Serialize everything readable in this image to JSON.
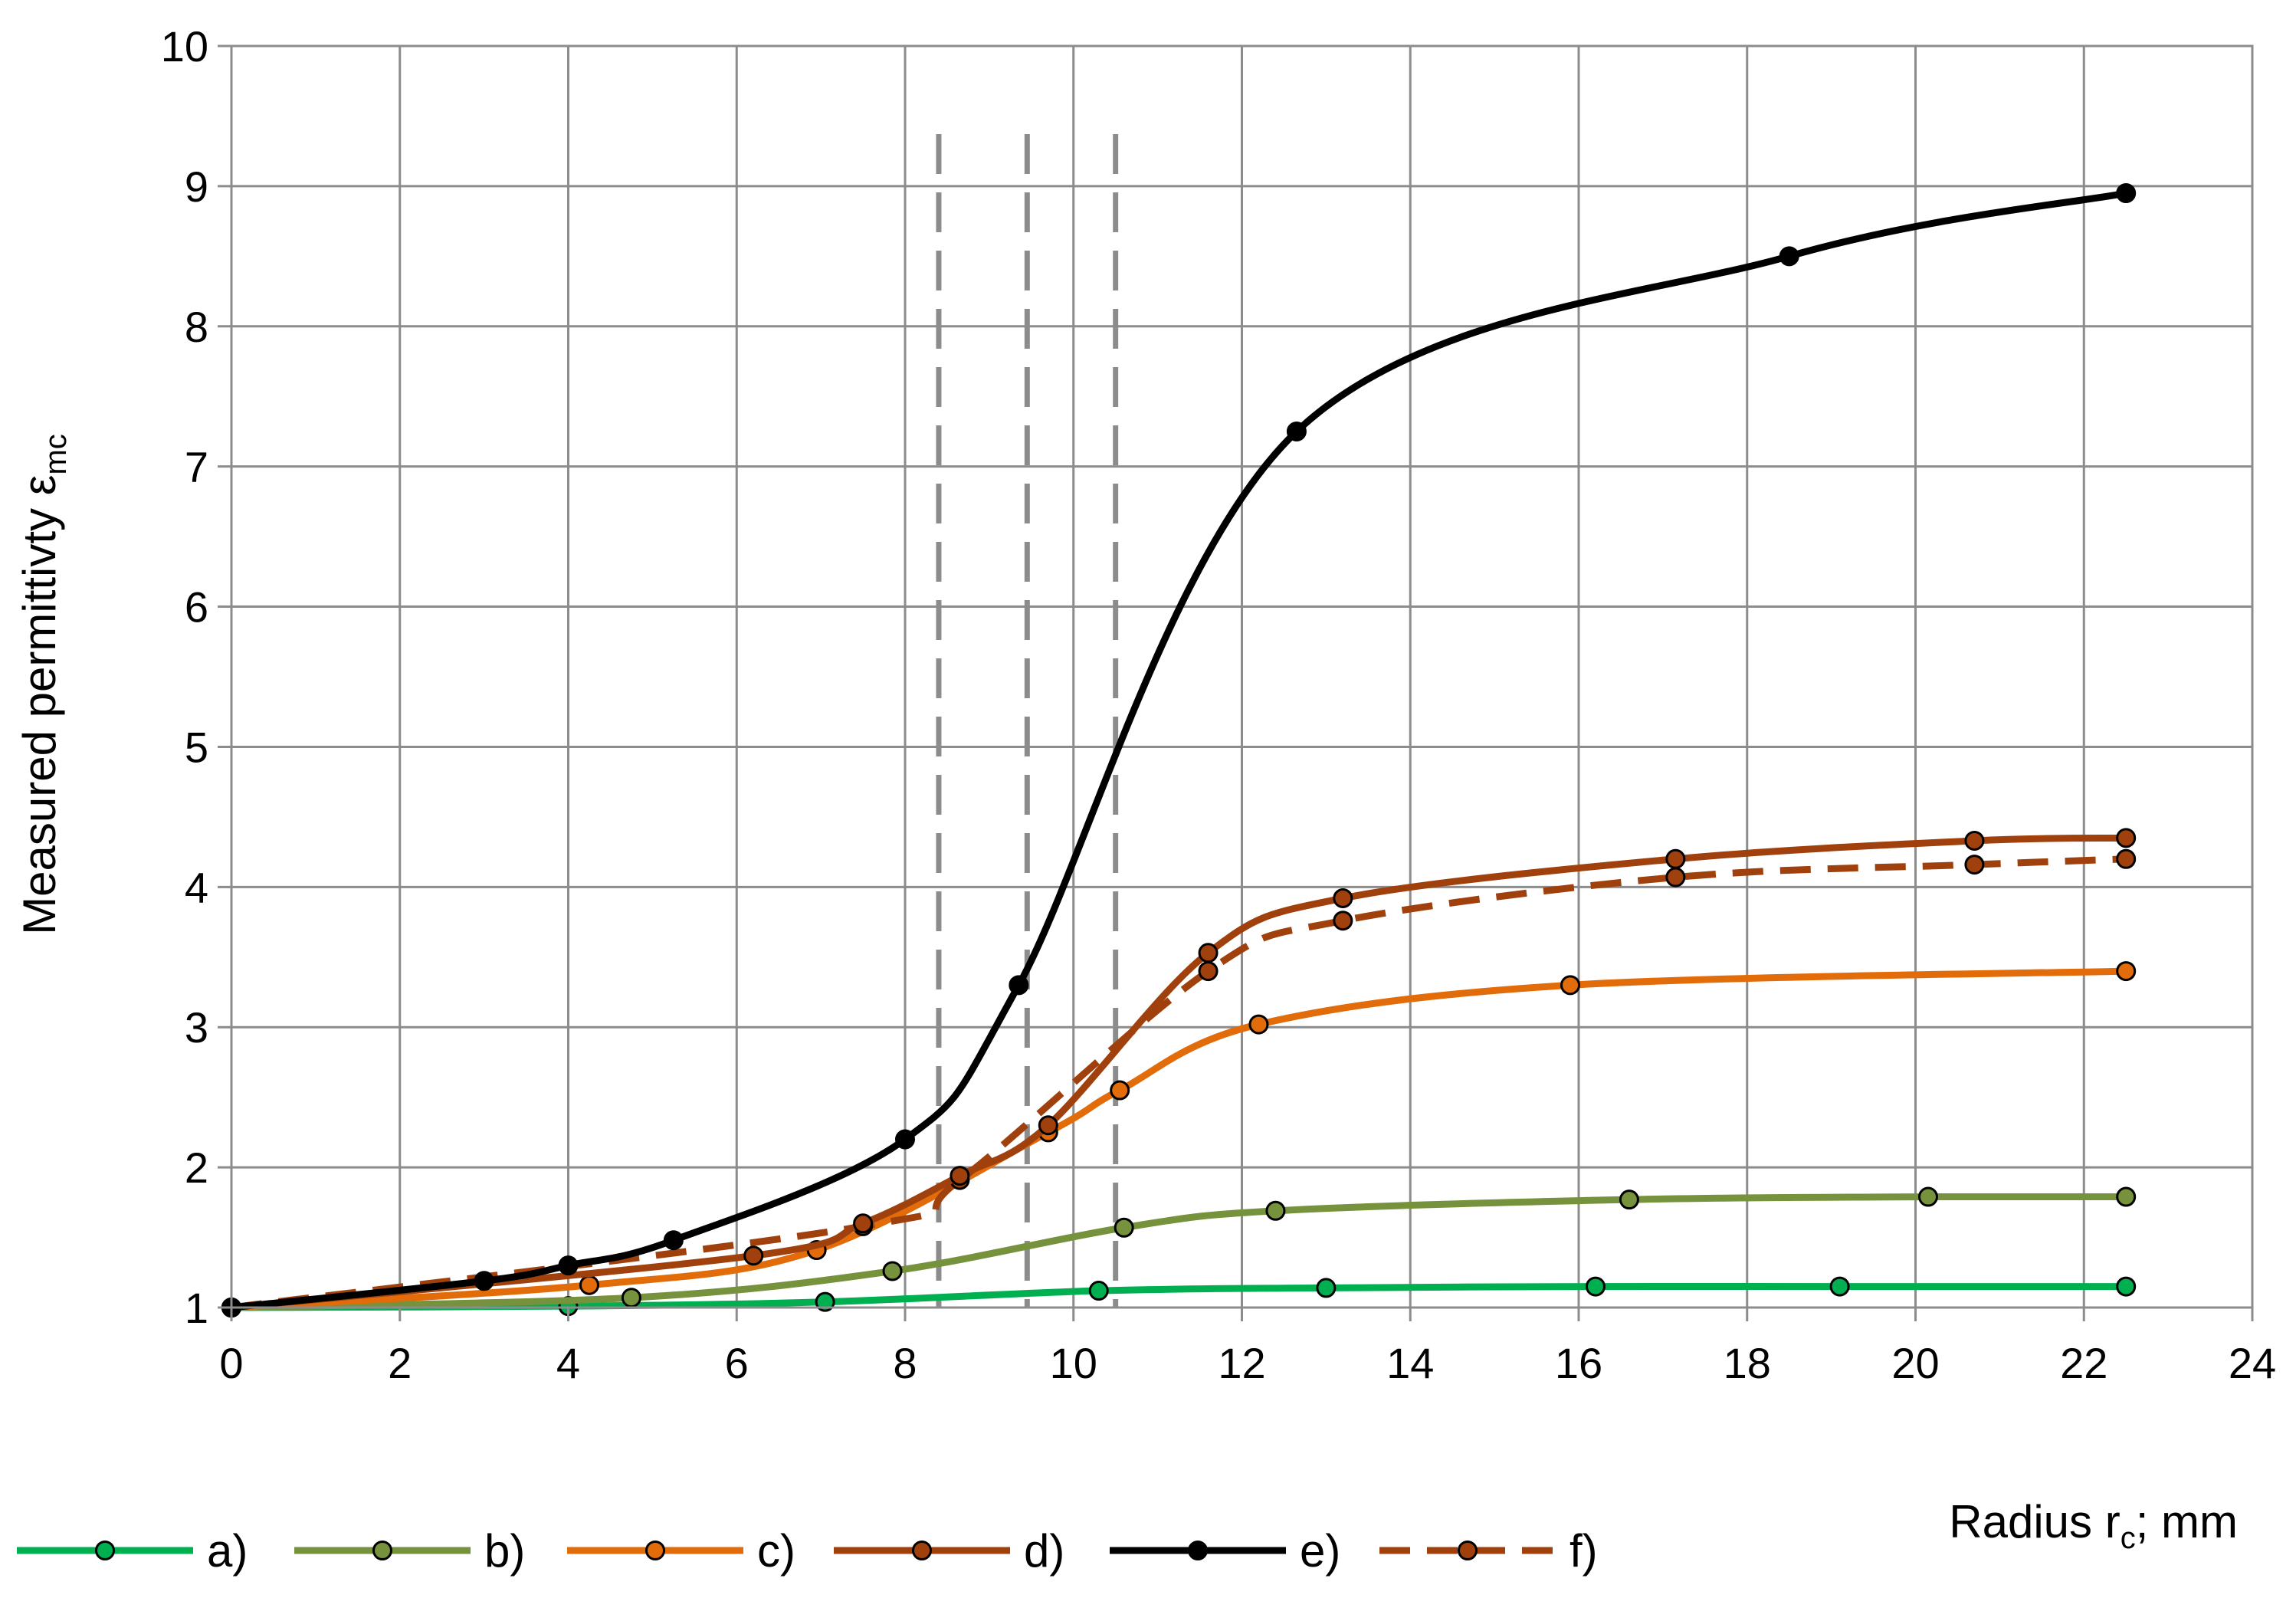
{
  "chart_data": {
    "type": "line",
    "title": "",
    "xlabel": {
      "prefix": "Radius r",
      "sub": "c",
      "suffix": "; mm"
    },
    "ylabel": {
      "prefix": "Measured permittivty ε",
      "sub": "mc"
    },
    "xlim": [
      0,
      24
    ],
    "ylim": [
      1,
      10
    ],
    "xticks": [
      "0",
      "2",
      "4",
      "6",
      "8",
      "10",
      "12",
      "14",
      "16",
      "18",
      "20",
      "22",
      "24"
    ],
    "yticks": [
      "1",
      "2",
      "3",
      "4",
      "5",
      "6",
      "7",
      "8",
      "9",
      "10"
    ],
    "grid": true,
    "legend_position": "bottom",
    "vertical_markers": [
      8.4,
      9.45,
      10.5
    ],
    "series": [
      {
        "name": "a)",
        "color": "#00b050",
        "dashed": false,
        "x": [
          0,
          4.0,
          7.05,
          10.3,
          13.0,
          16.2,
          19.1,
          22.5
        ],
        "y": [
          1.0,
          1.01,
          1.04,
          1.12,
          1.14,
          1.15,
          1.15,
          1.15
        ]
      },
      {
        "name": "b)",
        "color": "#76923c",
        "dashed": false,
        "x": [
          0,
          4.75,
          7.85,
          10.6,
          12.4,
          16.6,
          20.15,
          22.5
        ],
        "y": [
          1.0,
          1.07,
          1.26,
          1.57,
          1.69,
          1.77,
          1.79,
          1.79
        ]
      },
      {
        "name": "c)",
        "color": "#e26b0a",
        "dashed": false,
        "x": [
          0,
          4.25,
          6.95,
          9.7,
          10.55,
          12.2,
          15.9,
          22.5
        ],
        "y": [
          1.0,
          1.16,
          1.41,
          2.25,
          2.55,
          3.02,
          3.3,
          3.4
        ]
      },
      {
        "name": "d)",
        "color": "#a0410d",
        "dashed": false,
        "x": [
          0,
          6.2,
          7.5,
          8.65,
          9.7,
          11.6,
          13.2,
          17.15,
          20.7,
          22.5
        ],
        "y": [
          1.0,
          1.37,
          1.6,
          1.94,
          2.3,
          3.53,
          3.92,
          4.2,
          4.33,
          4.35
        ]
      },
      {
        "name": "e)",
        "color": "#000000",
        "dashed": false,
        "x": [
          0,
          3.0,
          4.0,
          5.25,
          8.0,
          9.35,
          12.65,
          18.5,
          22.5
        ],
        "y": [
          1.0,
          1.19,
          1.3,
          1.48,
          2.2,
          3.3,
          7.25,
          8.5,
          8.95
        ]
      },
      {
        "name": "f)",
        "color": "#a0410d",
        "dashed": true,
        "x": [
          0,
          7.5,
          8.65,
          11.6,
          13.2,
          17.15,
          20.7,
          22.5
        ],
        "y": [
          1.0,
          1.58,
          1.91,
          3.4,
          3.76,
          4.07,
          4.16,
          4.2
        ]
      }
    ]
  }
}
